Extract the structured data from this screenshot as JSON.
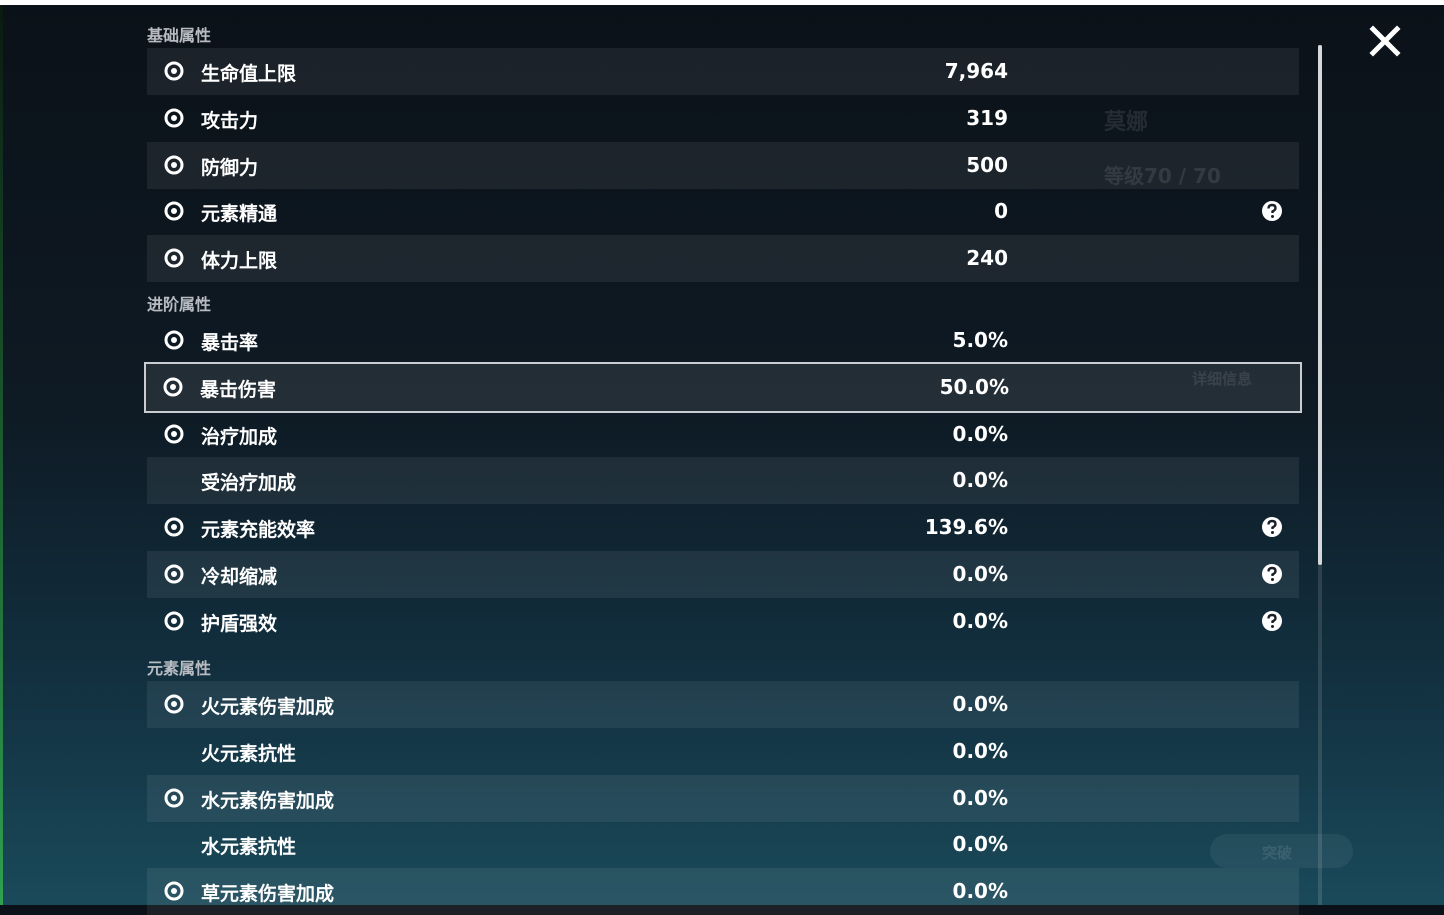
{
  "background": {
    "name": "莫娜",
    "level": "等级70 / 70",
    "details_button": "详细信息",
    "ascend_button": "突破"
  },
  "sections": [
    {
      "title": "基础属性",
      "rows": [
        {
          "label": "生命值上限",
          "value": "7,964"
        },
        {
          "label": "攻击力",
          "value": "319"
        },
        {
          "label": "防御力",
          "value": "500"
        },
        {
          "label": "元素精通",
          "value": "0"
        },
        {
          "label": "体力上限",
          "value": "240"
        }
      ]
    },
    {
      "title": "进阶属性",
      "rows": [
        {
          "label": "暴击率",
          "value": "5.0%"
        },
        {
          "label": "暴击伤害",
          "value": "50.0%"
        },
        {
          "label": "治疗加成",
          "value": "0.0%"
        },
        {
          "label": "受治疗加成",
          "value": "0.0%"
        },
        {
          "label": "元素充能效率",
          "value": "139.6%"
        },
        {
          "label": "冷却缩减",
          "value": "0.0%"
        },
        {
          "label": "护盾强效",
          "value": "0.0%"
        }
      ]
    },
    {
      "title": "元素属性",
      "rows": [
        {
          "label": "火元素伤害加成",
          "value": "0.0%"
        },
        {
          "label": "火元素抗性",
          "value": "0.0%"
        },
        {
          "label": "水元素伤害加成",
          "value": "0.0%"
        },
        {
          "label": "水元素抗性",
          "value": "0.0%"
        },
        {
          "label": "草元素伤害加成",
          "value": "0.0%"
        }
      ]
    }
  ]
}
